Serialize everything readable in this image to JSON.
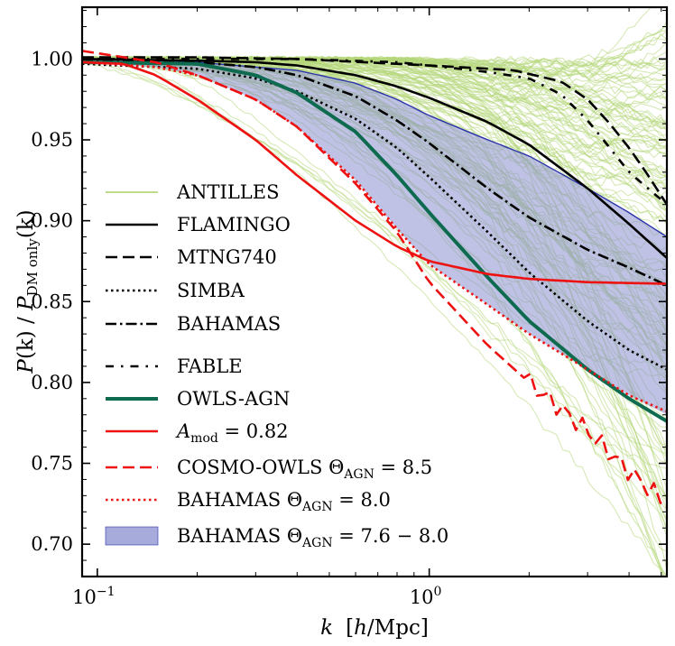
{
  "chart_data": {
    "type": "line",
    "x_scale": "log",
    "xlim": [
      0.09,
      5.2
    ],
    "ylim": [
      0.68,
      1.032
    ],
    "xlabel": "k [h/Mpc]",
    "ylabel": "P(k) / P_DM only(k)",
    "x_tick_labels": [
      {
        "value": 0.1,
        "base": "10",
        "exp": "−1"
      },
      {
        "value": 1.0,
        "base": "10",
        "exp": "0"
      }
    ],
    "y_ticks": [
      0.7,
      0.75,
      0.8,
      0.85,
      0.9,
      0.95,
      1.0
    ],
    "y_tick_labels": [
      "0.70",
      "0.75",
      "0.80",
      "0.85",
      "0.90",
      "0.95",
      "1.00"
    ],
    "legend_position": "center-left",
    "colors": {
      "antilles": "#b5d77a",
      "band_fill": "#8a8fd0",
      "band_edge": "#2a33a8",
      "owls": "#0e6b50",
      "red": "#ee1111",
      "black": "#000000"
    },
    "antilles_ensemble": {
      "count": 150,
      "k_start_range": [
        0.07,
        0.9
      ],
      "suppression_at_kmax_range": [
        0.0,
        0.33
      ],
      "note": "ensemble of ~150 thin light-green curves spanning the plotted region"
    },
    "bahamas_band": {
      "x": [
        0.09,
        0.15,
        0.2,
        0.3,
        0.4,
        0.6,
        0.8,
        1.0,
        1.5,
        2.0,
        3.0,
        4.0,
        5.2
      ],
      "lower": [
        0.998,
        0.995,
        0.99,
        0.975,
        0.958,
        0.925,
        0.895,
        0.873,
        0.848,
        0.83,
        0.808,
        0.792,
        0.78
      ],
      "upper": [
        1.0,
        0.999,
        0.998,
        0.995,
        0.993,
        0.985,
        0.975,
        0.965,
        0.95,
        0.94,
        0.92,
        0.905,
        0.89
      ]
    },
    "series": [
      {
        "name": "FLAMINGO",
        "style": "solid",
        "color": "#000000",
        "x": [
          0.09,
          0.2,
          0.3,
          0.4,
          0.6,
          0.8,
          1.0,
          1.5,
          2.0,
          3.0,
          4.0,
          5.2
        ],
        "y": [
          1.0,
          0.999,
          0.998,
          0.996,
          0.99,
          0.983,
          0.976,
          0.961,
          0.947,
          0.92,
          0.898,
          0.877
        ]
      },
      {
        "name": "MTNG740",
        "style": "dashed",
        "color": "#000000",
        "x": [
          0.09,
          0.2,
          0.4,
          0.8,
          1.0,
          1.5,
          1.8,
          2.5,
          3.0,
          3.5,
          4.0,
          4.5,
          5.2
        ],
        "y": [
          1.001,
          1.001,
          1.0,
          0.997,
          0.996,
          0.994,
          0.993,
          0.986,
          0.975,
          0.96,
          0.945,
          0.93,
          0.91
        ]
      },
      {
        "name": "SIMBA",
        "style": "dotted",
        "color": "#000000",
        "x": [
          0.09,
          0.2,
          0.3,
          0.4,
          0.6,
          0.8,
          1.0,
          1.5,
          2.0,
          3.0,
          4.0,
          5.2
        ],
        "y": [
          0.997,
          0.994,
          0.988,
          0.98,
          0.963,
          0.945,
          0.927,
          0.893,
          0.868,
          0.838,
          0.82,
          0.808
        ]
      },
      {
        "name": "BAHAMAS",
        "style": "dashdot",
        "color": "#000000",
        "x": [
          0.09,
          0.2,
          0.3,
          0.4,
          0.6,
          0.8,
          1.0,
          1.5,
          2.0,
          3.0,
          4.0,
          5.2
        ],
        "y": [
          0.999,
          0.998,
          0.995,
          0.99,
          0.977,
          0.962,
          0.948,
          0.92,
          0.902,
          0.882,
          0.871,
          0.86
        ]
      },
      {
        "name": "FABLE",
        "style": "loosely-dashdot",
        "color": "#000000",
        "x": [
          0.09,
          0.2,
          0.4,
          0.8,
          1.0,
          1.5,
          2.0,
          2.5,
          3.0,
          3.5,
          4.0,
          5.2
        ],
        "y": [
          1.0,
          1.0,
          1.0,
          0.998,
          0.996,
          0.992,
          0.988,
          0.978,
          0.962,
          0.945,
          0.93,
          0.91
        ]
      },
      {
        "name": "OWLS-AGN",
        "style": "solid-thick",
        "color": "#0e6b50",
        "x": [
          0.09,
          0.2,
          0.3,
          0.4,
          0.6,
          0.8,
          1.0,
          1.5,
          2.0,
          3.0,
          4.0,
          5.2
        ],
        "y": [
          0.998,
          0.997,
          0.99,
          0.979,
          0.955,
          0.928,
          0.905,
          0.865,
          0.838,
          0.808,
          0.79,
          0.776
        ]
      },
      {
        "name": "A_mod = 0.82",
        "style": "solid",
        "color": "#ee1111",
        "x": [
          0.09,
          0.12,
          0.15,
          0.2,
          0.3,
          0.4,
          0.6,
          0.8,
          1.0,
          1.5,
          2.0,
          3.0,
          5.2
        ],
        "y": [
          0.998,
          0.997,
          0.99,
          0.975,
          0.95,
          0.928,
          0.9,
          0.884,
          0.875,
          0.867,
          0.864,
          0.862,
          0.861
        ]
      },
      {
        "name": "COSMO-OWLS Θ_AGN = 8.5",
        "style": "dashed",
        "color": "#ee1111",
        "x": [
          0.09,
          0.15,
          0.2,
          0.3,
          0.4,
          0.6,
          0.8,
          1.0,
          1.5,
          2.0,
          3.0,
          4.0,
          5.2
        ],
        "y": [
          1.005,
          0.998,
          0.99,
          0.975,
          0.958,
          0.923,
          0.893,
          0.862,
          0.823,
          0.8,
          0.77,
          0.745,
          0.725
        ]
      },
      {
        "name": "BAHAMAS Θ_AGN = 8.0",
        "style": "dotted",
        "color": "#ee1111",
        "x": [
          0.09,
          0.15,
          0.2,
          0.3,
          0.4,
          0.6,
          0.8,
          1.0,
          1.5,
          2.0,
          3.0,
          4.0,
          5.2
        ],
        "y": [
          0.998,
          0.995,
          0.99,
          0.975,
          0.958,
          0.925,
          0.895,
          0.873,
          0.848,
          0.83,
          0.808,
          0.792,
          0.782
        ]
      }
    ],
    "legend": [
      {
        "label": "ANTILLES",
        "kind": "line",
        "color": "#b5d77a",
        "style": "solid"
      },
      {
        "label": "FLAMINGO",
        "kind": "line",
        "color": "#000000",
        "style": "solid"
      },
      {
        "label": "MTNG740",
        "kind": "line",
        "color": "#000000",
        "style": "dashed"
      },
      {
        "label": "SIMBA",
        "kind": "line",
        "color": "#000000",
        "style": "dotted"
      },
      {
        "label": "BAHAMAS",
        "kind": "line",
        "color": "#000000",
        "style": "dashdot"
      },
      {
        "label": "FABLE",
        "kind": "line",
        "color": "#000000",
        "style": "loosely-dashdot"
      },
      {
        "label": "OWLS-AGN",
        "kind": "line",
        "color": "#0e6b50",
        "style": "solid-thick"
      },
      {
        "label": "A_mod = 0.82",
        "kind": "line",
        "color": "#ee1111",
        "style": "solid"
      },
      {
        "label": "COSMO-OWLS Θ_AGN = 8.5",
        "kind": "line",
        "color": "#ee1111",
        "style": "dashed"
      },
      {
        "label": "BAHAMAS Θ_AGN = 8.0",
        "kind": "line",
        "color": "#ee1111",
        "style": "dotted"
      },
      {
        "label": "BAHAMAS Θ_AGN = 7.6 − 8.0",
        "kind": "patch",
        "color": "#8a8fd0"
      }
    ],
    "legend_text": {
      "antilles": "ANTILLES",
      "flamingo": "FLAMINGO",
      "mtng": "MTNG740",
      "simba": "SIMBA",
      "bahamas": "BAHAMAS",
      "fable": "FABLE",
      "owls": "OWLS-AGN",
      "amod_sym": "A",
      "amod_sub": "mod",
      "amod_val": " = 0.82",
      "cosmo_name": "COSMO-OWLS ",
      "theta": "Θ",
      "agn": "AGN",
      "cosmo_val": " = 8.5",
      "bah8_name": "BAHAMAS ",
      "bah8_val": " = 8.0",
      "bahband_name": "BAHAMAS ",
      "bahband_val": " = 7.6 − 8.0"
    },
    "axis_text": {
      "x_k": "k",
      "x_units_open": "[",
      "x_units_h": "h",
      "x_units_rest": "/Mpc]",
      "y_P1": "P",
      "y_k1": "(k) / ",
      "y_P2": "P",
      "y_sub": "DM only",
      "y_k2": "(k)"
    }
  }
}
